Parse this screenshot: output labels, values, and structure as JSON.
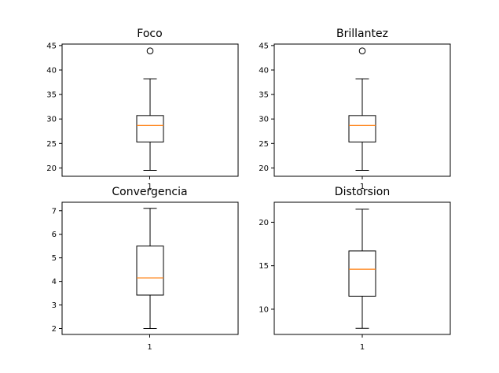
{
  "chart_data": [
    {
      "type": "box",
      "title": "Foco",
      "categories": [
        "1"
      ],
      "yticks": [
        20,
        25,
        30,
        35,
        40,
        45
      ],
      "ylim": [
        18.3,
        45.3
      ],
      "box": {
        "whisker_low": 19.5,
        "q1": 25.3,
        "median": 28.7,
        "q3": 30.7,
        "whisker_high": 38.2
      },
      "outliers": [
        43.9
      ],
      "colors": {
        "box": "#000000",
        "median": "#ff7f0e"
      }
    },
    {
      "type": "box",
      "title": "Brillantez",
      "categories": [
        "1"
      ],
      "yticks": [
        20,
        25,
        30,
        35,
        40,
        45
      ],
      "ylim": [
        18.3,
        45.3
      ],
      "box": {
        "whisker_low": 19.5,
        "q1": 25.3,
        "median": 28.7,
        "q3": 30.7,
        "whisker_high": 38.2
      },
      "outliers": [
        43.9
      ],
      "colors": {
        "box": "#000000",
        "median": "#ff7f0e"
      }
    },
    {
      "type": "box",
      "title": "Convergencia",
      "categories": [
        "1"
      ],
      "yticks": [
        2,
        3,
        4,
        5,
        6,
        7
      ],
      "ylim": [
        1.75,
        7.36
      ],
      "box": {
        "whisker_low": 2.0,
        "q1": 3.42,
        "median": 4.15,
        "q3": 5.5,
        "whisker_high": 7.1
      },
      "outliers": [],
      "colors": {
        "box": "#000000",
        "median": "#ff7f0e"
      }
    },
    {
      "type": "box",
      "title": "Distorsion",
      "categories": [
        "1"
      ],
      "yticks": [
        10,
        15,
        20
      ],
      "ylim": [
        7.1,
        22.3
      ],
      "box": {
        "whisker_low": 7.8,
        "q1": 11.5,
        "median": 14.6,
        "q3": 16.7,
        "whisker_high": 21.5
      },
      "outliers": [],
      "colors": {
        "box": "#000000",
        "median": "#ff7f0e"
      }
    }
  ]
}
